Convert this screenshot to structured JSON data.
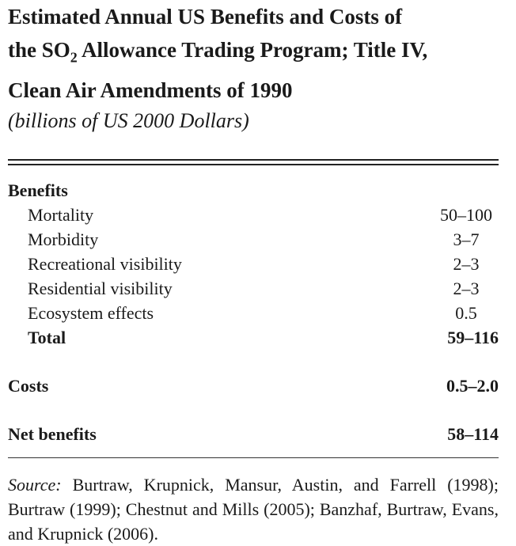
{
  "title": {
    "line1": "Estimated Annual US Benefits and Costs of",
    "line2_pre": "the SO",
    "line2_sub": "2",
    "line2_post": " Allowance Trading Program; Title IV,",
    "line3": "Clean Air Amendments of 1990"
  },
  "subtitle": "(billions of US 2000 Dollars)",
  "table": {
    "benefits_header": "Benefits",
    "rows": [
      {
        "label": "Mortality",
        "value": "50–100"
      },
      {
        "label": "Morbidity",
        "value": "3–7"
      },
      {
        "label": "Recreational visibility",
        "value": "2–3"
      },
      {
        "label": "Residential visibility",
        "value": "2–3"
      },
      {
        "label": "Ecosystem effects",
        "value": "0.5"
      }
    ],
    "total": {
      "label": "Total",
      "value": "59–116"
    },
    "costs": {
      "label": "Costs",
      "value": "0.5–2.0"
    },
    "net": {
      "label": "Net benefits",
      "value": "58–114"
    }
  },
  "source": {
    "label": "Source:",
    "text": " Burtraw, Krupnick, Mansur, Austin, and Farrell (1998); Burtraw (1999); Chestnut and Mills (2005); Banzhaf, Burtraw, Evans, and Krupnick (2006)."
  }
}
